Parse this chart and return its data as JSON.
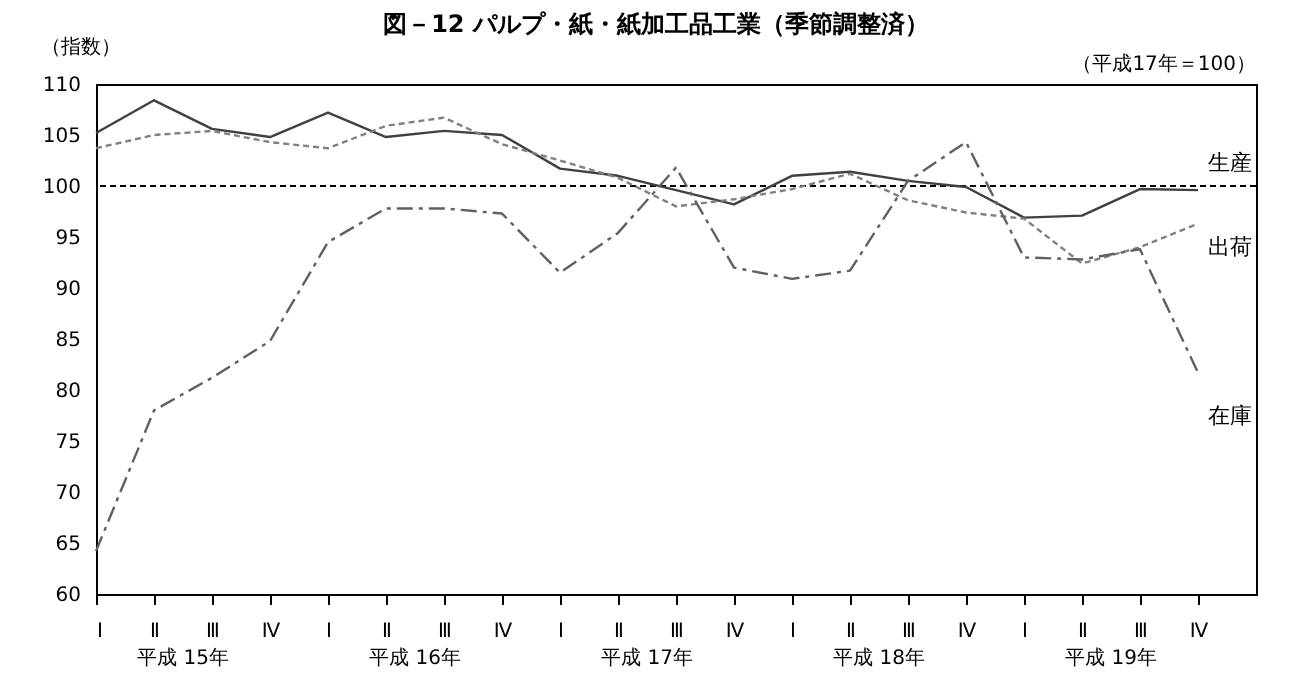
{
  "chart_data": {
    "type": "line",
    "title": "図－12 パルプ・紙・紙加工品工業（季節調整済）",
    "subtitle": "（平成17年＝100）",
    "ylabel": "（指数）",
    "categories": [
      "Ⅰ",
      "Ⅱ",
      "Ⅲ",
      "Ⅳ",
      "Ⅰ",
      "Ⅱ",
      "Ⅲ",
      "Ⅳ",
      "Ⅰ",
      "Ⅱ",
      "Ⅲ",
      "Ⅳ",
      "Ⅰ",
      "Ⅱ",
      "Ⅲ",
      "Ⅳ",
      "Ⅰ",
      "Ⅱ",
      "Ⅲ",
      "Ⅳ"
    ],
    "series": [
      {
        "name": "生産",
        "color": "#404040",
        "line_style": "solid",
        "values": [
          105.2,
          108.4,
          105.6,
          104.8,
          107.2,
          104.8,
          105.4,
          105.0,
          101.7,
          101.0,
          99.6,
          98.2,
          101.0,
          101.4,
          100.5,
          99.9,
          96.9,
          97.1,
          99.7,
          99.6
        ]
      },
      {
        "name": "出荷",
        "color": "#808080",
        "line_style": "dotted",
        "values": [
          103.7,
          105.0,
          105.4,
          104.3,
          103.7,
          105.9,
          106.7,
          104.1,
          102.5,
          100.8,
          98.0,
          98.7,
          99.7,
          101.2,
          98.6,
          97.4,
          96.8,
          92.4,
          94.0,
          96.3
        ]
      },
      {
        "name": "在庫",
        "color": "#606060",
        "line_style": "dashed",
        "values": [
          64.2,
          78.0,
          81.2,
          84.8,
          94.5,
          97.8,
          97.8,
          97.3,
          91.5,
          95.4,
          101.8,
          92.0,
          90.9,
          91.7,
          100.5,
          104.3,
          93.0,
          92.8,
          93.8,
          81.7
        ]
      }
    ],
    "ylim": [
      60,
      110
    ],
    "yticks": [
      60,
      65,
      70,
      75,
      80,
      85,
      90,
      95,
      100,
      105,
      110
    ],
    "ref_lines": [
      {
        "axis": "y",
        "value": 100,
        "color": "#000000",
        "line_style": "dotted"
      }
    ],
    "annotations": [
      "平成 15年",
      "平成 16年",
      "平成 17年",
      "平成 18年",
      "平成 19年"
    ],
    "grid": false
  }
}
